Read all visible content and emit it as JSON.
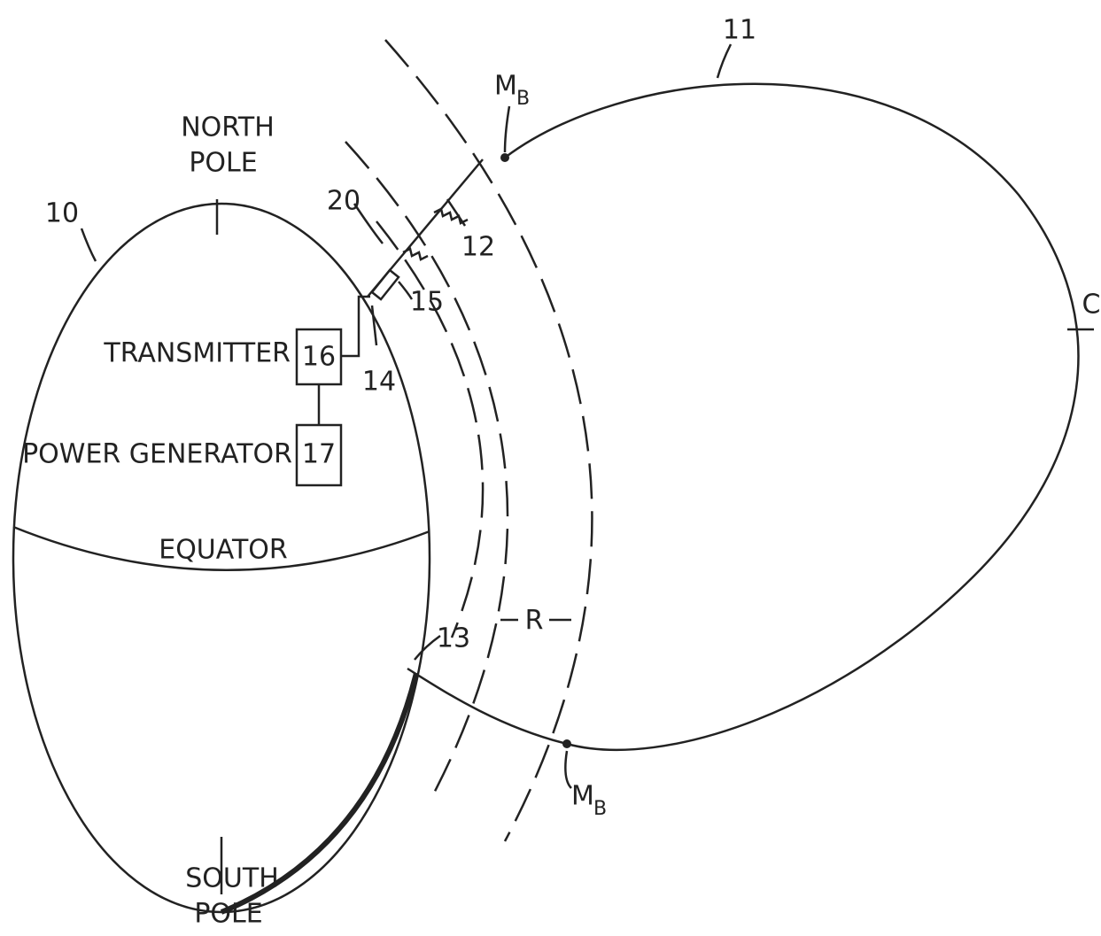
{
  "north_pole": [
    "NORTH",
    "POLE"
  ],
  "south_pole": [
    "SOUTH",
    "POLE"
  ],
  "equator": "EQUATOR",
  "components": [
    {
      "ref": "16",
      "label": "TRANSMITTER"
    },
    {
      "ref": "17",
      "label": "POWER GENERATOR"
    }
  ],
  "reference_numerals": [
    "10",
    "11",
    "12",
    "13",
    "14",
    "15",
    "20"
  ],
  "markers": {
    "mirror_point": {
      "main": "M",
      "sub": "B"
    },
    "range": "R",
    "field_line": "C"
  }
}
